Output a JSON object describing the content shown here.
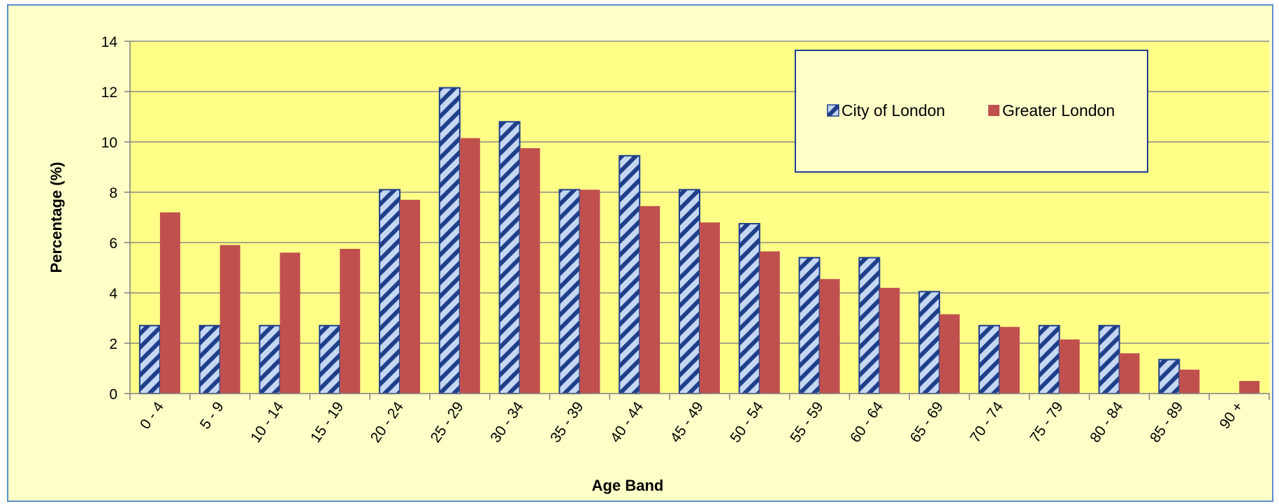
{
  "chart_data": {
    "type": "bar",
    "title": "",
    "xlabel": "Age Band",
    "ylabel": "Percentage (%)",
    "ylim": [
      0,
      14
    ],
    "yticks": [
      "0",
      "2",
      "4",
      "6",
      "8",
      "10",
      "12",
      "14"
    ],
    "grid": true,
    "legend": "top-right",
    "categories": [
      "0 - 4",
      "5 - 9",
      "10 - 14",
      "15 - 19",
      "20 - 24",
      "25 - 29",
      "30 - 34",
      "35 - 39",
      "40 - 44",
      "45 - 49",
      "50 - 54",
      "55 - 59",
      "60 - 64",
      "65 - 69",
      "70 - 74",
      "75 - 79",
      "80 - 84",
      "85 - 89",
      "90 +"
    ],
    "series": [
      {
        "name": "City of London",
        "color": "#1f3f8a",
        "fill": "#c5d7f2",
        "pattern": "diagonal-stripes",
        "values": [
          2.7,
          2.7,
          2.7,
          2.7,
          8.1,
          12.15,
          10.8,
          8.1,
          9.45,
          8.1,
          6.75,
          5.4,
          5.4,
          4.05,
          2.7,
          2.7,
          2.7,
          1.35,
          0
        ]
      },
      {
        "name": "Greater London",
        "color": "#c0504d",
        "values": [
          7.2,
          5.9,
          5.6,
          5.75,
          7.7,
          10.15,
          9.75,
          8.1,
          7.45,
          6.8,
          5.65,
          4.55,
          4.2,
          3.15,
          2.65,
          2.15,
          1.6,
          0.95,
          0.5
        ]
      }
    ]
  }
}
